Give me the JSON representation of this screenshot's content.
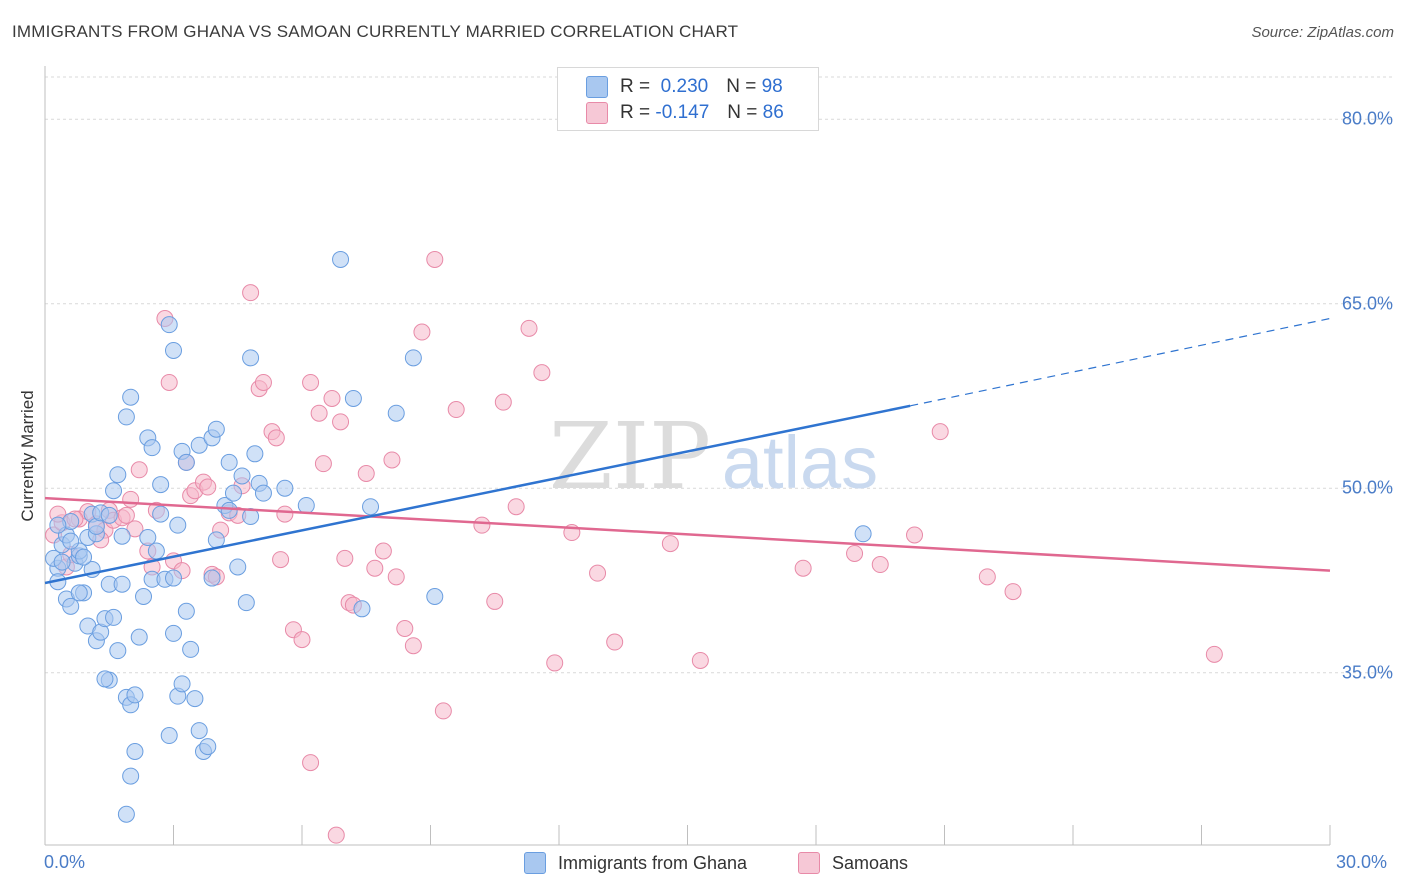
{
  "title": "IMMIGRANTS FROM GHANA VS SAMOAN CURRENTLY MARRIED CORRELATION CHART",
  "source": "Source: ZipAtlas.com",
  "watermark": {
    "zip": "ZIP",
    "atlas": "atlas"
  },
  "colors": {
    "blue_fill": "#a9c8f0",
    "blue_stroke": "#6a9ee0",
    "blue_line": "#2f74d0",
    "pink_fill": "#f6b8cb",
    "pink_stroke": "#e88aa8",
    "pink_line": "#e06890",
    "axis_text": "#4a7cc7",
    "grid": "#d9d9d9"
  },
  "legend_top": {
    "rows": [
      {
        "r_label": "R =",
        "r_value": "0.230",
        "n_label": "N =",
        "n_value": "98"
      },
      {
        "r_label": "R =",
        "r_value": "-0.147",
        "n_label": "N =",
        "n_value": "86"
      }
    ]
  },
  "legend_bottom": [
    "Immigrants from Ghana",
    "Samoans"
  ],
  "chart_data": {
    "type": "scatter",
    "title": "IMMIGRANTS FROM GHANA VS SAMOAN CURRENTLY MARRIED CORRELATION CHART",
    "xlabel": "",
    "ylabel": "Currently Married",
    "xlim": [
      0,
      30
    ],
    "ylim": [
      21,
      84
    ],
    "y_ticks": [
      "80.0%",
      "65.0%",
      "50.0%",
      "35.0%"
    ],
    "y_tick_values": [
      80,
      65,
      50,
      35
    ],
    "x_tick_labels": [
      "0.0%",
      "30.0%"
    ],
    "grid": true,
    "legend": "top-center",
    "series": [
      {
        "name": "Immigrants from Ghana",
        "r": 0.23,
        "n": 98,
        "trend": {
          "x0": 0,
          "y0": 42.3,
          "x1": 20.2,
          "y1": 56.7,
          "dash_to_x": 30,
          "dash_to_y": 63.8
        },
        "points": [
          [
            0.3,
            43.5
          ],
          [
            0.2,
            44.3
          ],
          [
            0.4,
            45.4
          ],
          [
            0.5,
            46.2
          ],
          [
            0.6,
            47.3
          ],
          [
            0.3,
            42.4
          ],
          [
            0.7,
            43.9
          ],
          [
            0.5,
            41.0
          ],
          [
            0.8,
            44.5
          ],
          [
            0.9,
            41.5
          ],
          [
            0.6,
            40.4
          ],
          [
            1.0,
            46.0
          ],
          [
            1.1,
            47.9
          ],
          [
            1.2,
            46.3
          ],
          [
            0.8,
            44.9
          ],
          [
            1.0,
            38.8
          ],
          [
            1.2,
            37.6
          ],
          [
            1.3,
            38.3
          ],
          [
            1.4,
            39.4
          ],
          [
            1.5,
            42.2
          ],
          [
            1.6,
            39.5
          ],
          [
            1.7,
            36.8
          ],
          [
            1.8,
            42.2
          ],
          [
            1.9,
            33.0
          ],
          [
            1.5,
            34.4
          ],
          [
            2.0,
            32.4
          ],
          [
            2.1,
            33.2
          ],
          [
            2.2,
            37.9
          ],
          [
            2.3,
            41.2
          ],
          [
            2.5,
            42.6
          ],
          [
            2.4,
            46.0
          ],
          [
            2.6,
            44.9
          ],
          [
            2.7,
            47.9
          ],
          [
            2.8,
            42.6
          ],
          [
            3.0,
            42.7
          ],
          [
            2.9,
            29.9
          ],
          [
            3.1,
            33.1
          ],
          [
            3.2,
            34.1
          ],
          [
            3.3,
            40.0
          ],
          [
            3.4,
            36.9
          ],
          [
            3.5,
            32.9
          ],
          [
            3.6,
            30.3
          ],
          [
            3.7,
            28.6
          ],
          [
            3.8,
            29.0
          ],
          [
            3.9,
            42.7
          ],
          [
            4.0,
            45.8
          ],
          [
            4.2,
            48.6
          ],
          [
            4.4,
            49.6
          ],
          [
            4.5,
            43.6
          ],
          [
            4.7,
            40.7
          ],
          [
            4.8,
            47.7
          ],
          [
            5.0,
            50.4
          ],
          [
            1.2,
            46.9
          ],
          [
            1.3,
            48.0
          ],
          [
            1.6,
            49.8
          ],
          [
            1.7,
            51.1
          ],
          [
            1.9,
            55.8
          ],
          [
            2.0,
            57.4
          ],
          [
            2.4,
            54.1
          ],
          [
            2.5,
            53.3
          ],
          [
            2.9,
            63.3
          ],
          [
            3.0,
            61.2
          ],
          [
            3.2,
            53.0
          ],
          [
            3.3,
            52.1
          ],
          [
            3.6,
            53.5
          ],
          [
            3.9,
            54.1
          ],
          [
            4.0,
            54.8
          ],
          [
            4.3,
            52.1
          ],
          [
            4.6,
            51.0
          ],
          [
            4.9,
            52.8
          ],
          [
            4.8,
            60.6
          ],
          [
            5.1,
            49.6
          ],
          [
            5.6,
            50.0
          ],
          [
            6.1,
            48.6
          ],
          [
            6.9,
            68.6
          ],
          [
            7.2,
            57.3
          ],
          [
            7.4,
            40.2
          ],
          [
            7.6,
            48.5
          ],
          [
            8.2,
            56.1
          ],
          [
            8.6,
            60.6
          ],
          [
            9.1,
            41.2
          ],
          [
            1.4,
            34.5
          ],
          [
            2.1,
            28.6
          ],
          [
            2.0,
            26.6
          ],
          [
            1.9,
            23.5
          ],
          [
            3.0,
            38.2
          ],
          [
            0.8,
            41.5
          ],
          [
            1.1,
            43.4
          ],
          [
            0.4,
            44.0
          ],
          [
            0.9,
            44.4
          ],
          [
            1.5,
            47.8
          ],
          [
            0.6,
            45.7
          ],
          [
            19.1,
            46.3
          ],
          [
            4.3,
            48.2
          ],
          [
            2.7,
            50.3
          ],
          [
            3.1,
            47.0
          ],
          [
            1.8,
            46.1
          ],
          [
            0.3,
            47.0
          ]
        ]
      },
      {
        "name": "Samoans",
        "r": -0.147,
        "n": 86,
        "trend": {
          "x0": 0,
          "y0": 49.2,
          "x1": 30,
          "y1": 43.3
        },
        "points": [
          [
            0.2,
            46.2
          ],
          [
            0.4,
            47.2
          ],
          [
            0.5,
            43.6
          ],
          [
            0.6,
            44.6
          ],
          [
            0.8,
            47.5
          ],
          [
            1.0,
            48.1
          ],
          [
            1.2,
            47.1
          ],
          [
            1.4,
            46.6
          ],
          [
            1.5,
            48.2
          ],
          [
            1.6,
            47.4
          ],
          [
            1.8,
            47.6
          ],
          [
            2.0,
            49.1
          ],
          [
            2.2,
            51.5
          ],
          [
            2.4,
            44.9
          ],
          [
            2.5,
            43.6
          ],
          [
            2.6,
            48.2
          ],
          [
            2.8,
            63.8
          ],
          [
            2.9,
            58.6
          ],
          [
            3.0,
            44.1
          ],
          [
            3.2,
            43.3
          ],
          [
            3.3,
            52.1
          ],
          [
            3.4,
            49.4
          ],
          [
            3.5,
            49.8
          ],
          [
            3.7,
            50.5
          ],
          [
            3.8,
            50.1
          ],
          [
            3.9,
            43.0
          ],
          [
            4.0,
            42.8
          ],
          [
            4.1,
            46.6
          ],
          [
            4.3,
            48.0
          ],
          [
            4.5,
            47.8
          ],
          [
            4.6,
            50.2
          ],
          [
            4.8,
            65.9
          ],
          [
            5.0,
            58.1
          ],
          [
            5.1,
            58.6
          ],
          [
            5.3,
            54.6
          ],
          [
            5.4,
            54.1
          ],
          [
            5.5,
            44.2
          ],
          [
            5.6,
            47.9
          ],
          [
            5.8,
            38.5
          ],
          [
            6.0,
            37.7
          ],
          [
            6.2,
            58.6
          ],
          [
            6.4,
            56.1
          ],
          [
            6.5,
            52.0
          ],
          [
            6.7,
            57.3
          ],
          [
            6.9,
            55.4
          ],
          [
            7.0,
            44.3
          ],
          [
            7.1,
            40.7
          ],
          [
            7.2,
            40.5
          ],
          [
            7.5,
            51.2
          ],
          [
            7.7,
            43.5
          ],
          [
            7.9,
            44.9
          ],
          [
            8.1,
            52.3
          ],
          [
            8.2,
            42.8
          ],
          [
            8.4,
            38.6
          ],
          [
            8.6,
            37.2
          ],
          [
            8.8,
            62.7
          ],
          [
            9.1,
            68.6
          ],
          [
            9.3,
            31.9
          ],
          [
            9.6,
            56.4
          ],
          [
            10.2,
            47.0
          ],
          [
            10.5,
            40.8
          ],
          [
            10.7,
            57.0
          ],
          [
            11.0,
            48.5
          ],
          [
            11.3,
            63.0
          ],
          [
            11.6,
            59.4
          ],
          [
            11.9,
            35.8
          ],
          [
            12.3,
            46.4
          ],
          [
            12.9,
            43.1
          ],
          [
            13.3,
            37.5
          ],
          [
            14.6,
            45.5
          ],
          [
            15.3,
            36.0
          ],
          [
            17.7,
            43.5
          ],
          [
            18.9,
            44.7
          ],
          [
            19.5,
            43.8
          ],
          [
            20.3,
            46.2
          ],
          [
            20.9,
            54.6
          ],
          [
            22.0,
            42.8
          ],
          [
            22.6,
            41.6
          ],
          [
            27.3,
            36.5
          ],
          [
            6.2,
            27.7
          ],
          [
            6.8,
            21.8
          ],
          [
            0.3,
            47.9
          ],
          [
            1.3,
            45.8
          ],
          [
            0.7,
            47.5
          ],
          [
            1.9,
            47.8
          ],
          [
            2.1,
            46.7
          ]
        ]
      }
    ]
  }
}
